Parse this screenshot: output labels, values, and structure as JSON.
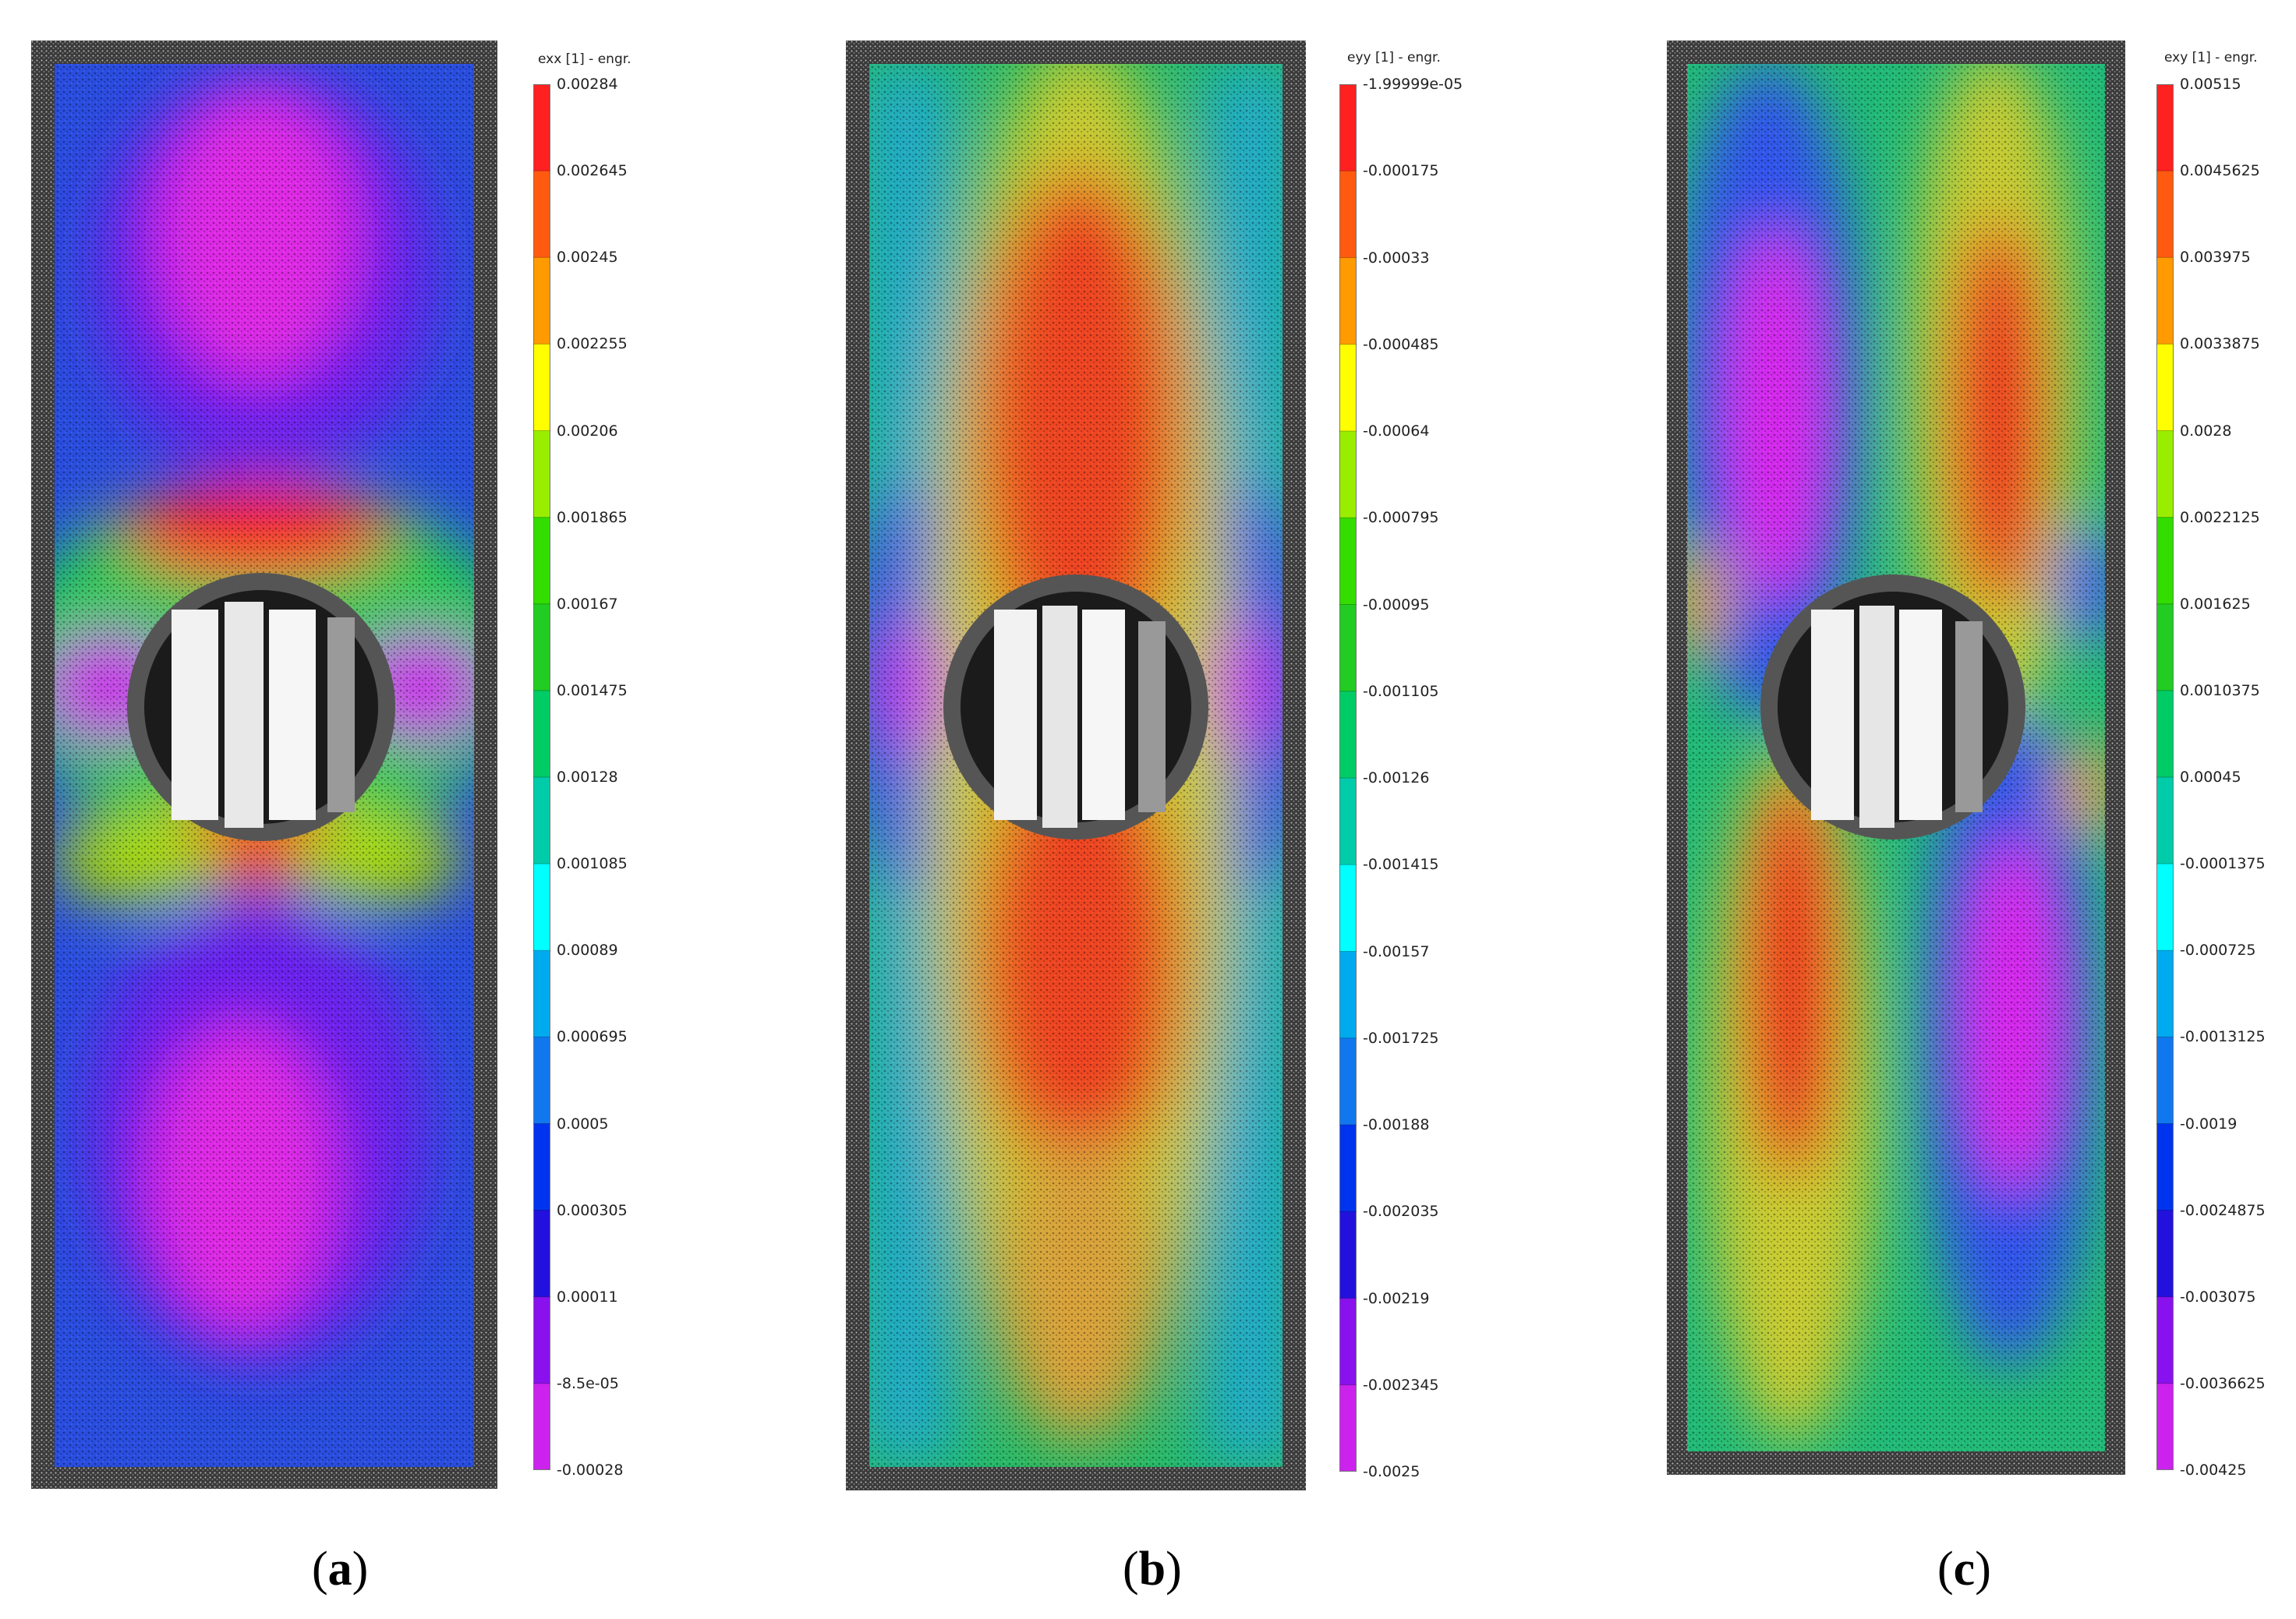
{
  "panels": [
    {
      "id": "a",
      "caption_letter": "a",
      "colorbar_title": "exx [1] - engr.",
      "ticks": [
        "0.00284",
        "0.002645",
        "0.00245",
        "0.002255",
        "0.00206",
        "0.001865",
        "0.00167",
        "0.001475",
        "0.00128",
        "0.001085",
        "0.00089",
        "0.000695",
        "0.0005",
        "0.000305",
        "0.00011",
        "-8.5e-05",
        "-0.00028"
      ]
    },
    {
      "id": "b",
      "caption_letter": "b",
      "colorbar_title": "eyy [1] - engr.",
      "ticks": [
        "-1.99999e-05",
        "-0.000175",
        "-0.00033",
        "-0.000485",
        "-0.00064",
        "-0.000795",
        "-0.00095",
        "-0.001105",
        "-0.00126",
        "-0.001415",
        "-0.00157",
        "-0.001725",
        "-0.00188",
        "-0.002035",
        "-0.00219",
        "-0.002345",
        "-0.0025"
      ]
    },
    {
      "id": "c",
      "caption_letter": "c",
      "colorbar_title": "exy [1] - engr.",
      "ticks": [
        "0.00515",
        "0.0045625",
        "0.003975",
        "0.0033875",
        "0.0028",
        "0.0022125",
        "0.001625",
        "0.0010375",
        "0.00045",
        "-0.0001375",
        "-0.000725",
        "-0.0013125",
        "-0.0019",
        "-0.0024875",
        "-0.003075",
        "-0.0036625",
        "-0.00425"
      ]
    }
  ],
  "colormap": [
    "#ff2020",
    "#ff5a10",
    "#ff9a00",
    "#ffff00",
    "#99ee00",
    "#33dd00",
    "#22cc22",
    "#00cc66",
    "#00ccaa",
    "#00ffff",
    "#00aaee",
    "#1177ee",
    "#0033ee",
    "#2211dd",
    "#8811ee",
    "#cc22ee",
    "#ff11ee"
  ]
}
